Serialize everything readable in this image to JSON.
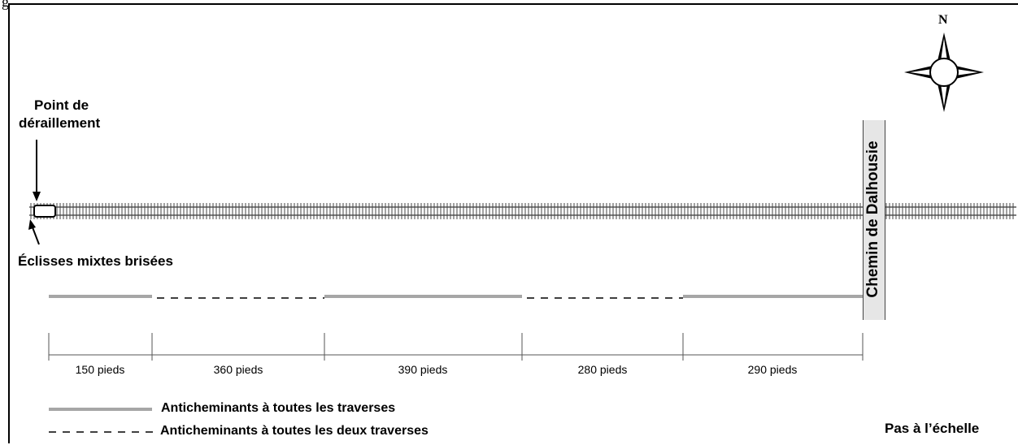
{
  "corner_fragment": "g",
  "derailment": {
    "label_line1": "Point de",
    "label_line2": "déraillement"
  },
  "broken_bars_label": "Éclisses mixtes brisées",
  "road_label": "Chemin de Dalhousie",
  "compass_label": "N",
  "segments": [
    {
      "label": "150 pieds",
      "style": "solid"
    },
    {
      "label": "360 pieds",
      "style": "dashed"
    },
    {
      "label": "390 pieds",
      "style": "solid"
    },
    {
      "label": "280 pieds",
      "style": "dashed"
    },
    {
      "label": "290 pieds",
      "style": "solid"
    }
  ],
  "legend": {
    "solid_label": "Anticheminants à toutes les traverses",
    "dashed_label": "Anticheminants à toutes les deux traverses"
  },
  "scale_note": "Pas à l’échelle",
  "colors": {
    "solid_line": "#a6a6a6",
    "dashed_line": "#000000",
    "road_fill": "#e6e6e6"
  }
}
